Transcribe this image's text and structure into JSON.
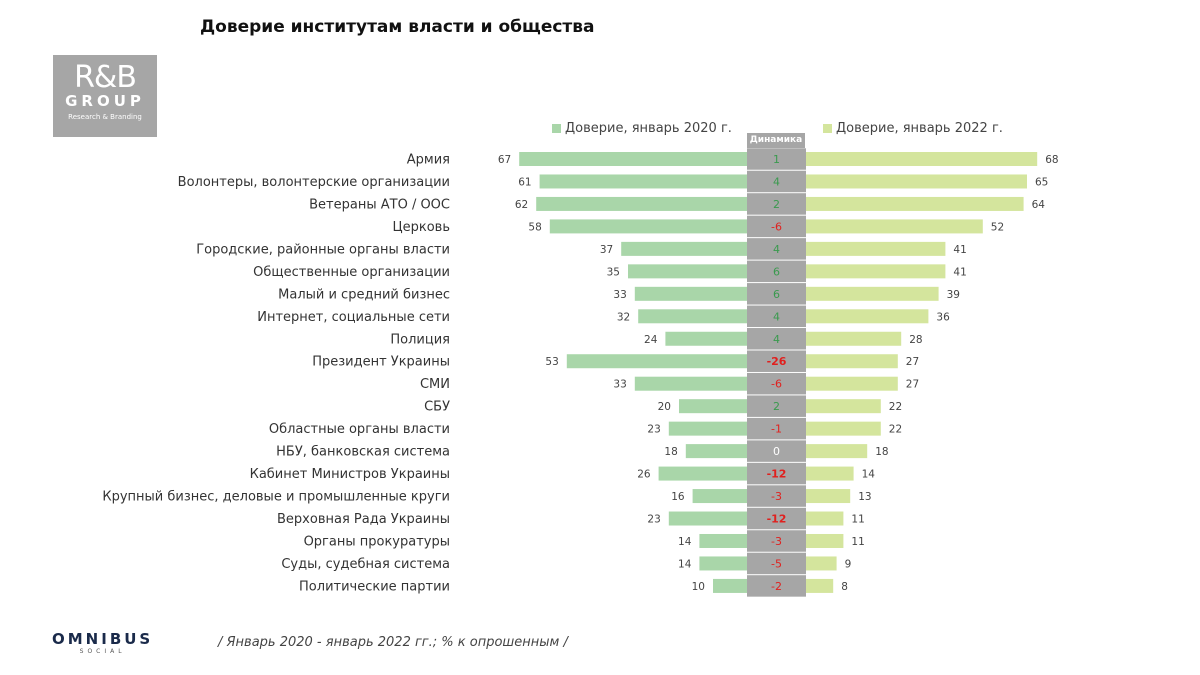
{
  "title": "Доверие институтам власти и общества",
  "logo": {
    "line1": "R&B",
    "line2": "GROUP",
    "line3": "Research & Branding"
  },
  "footer": {
    "logo": "OMNIBUS",
    "logo_sub": "SOCIAL",
    "note": "/ Январь 2020 - январь 2022 гг.; % к опрошенным /"
  },
  "chart_data": {
    "type": "bar",
    "title": "Доверие институтам власти и общества",
    "orientation": "horizontal-butterfly",
    "categories": [
      "Армия",
      "Волонтеры, волонтерские организации",
      "Ветераны АТО / ООС",
      "Церковь",
      "Городские, районные органы власти",
      "Общественные организации",
      "Малый и средний бизнес",
      "Интернет, социальные сети",
      "Полиция",
      "Президент Украины",
      "СМИ",
      "СБУ",
      "Областные органы власти",
      "НБУ, банковская система",
      "Кабинет Министров Украины",
      "Крупный бизнес, деловые и промышленные круги",
      "Верховная Рада Украины",
      "Органы прокуратуры",
      "Суды, судебная система",
      "Политические партии"
    ],
    "series": [
      {
        "name": "Доверие, январь 2020 г.",
        "color": "#a9d6a9",
        "values": [
          67,
          61,
          62,
          58,
          37,
          35,
          33,
          32,
          24,
          53,
          33,
          20,
          23,
          18,
          26,
          16,
          23,
          14,
          14,
          10
        ]
      },
      {
        "name": "Доверие, январь 2022 г.",
        "color": "#d4e59d",
        "values": [
          68,
          65,
          64,
          52,
          41,
          41,
          39,
          36,
          28,
          27,
          27,
          22,
          22,
          18,
          14,
          13,
          11,
          11,
          9,
          8
        ]
      }
    ],
    "dynamics": {
      "label": "Динамика",
      "values": [
        1,
        4,
        2,
        -6,
        4,
        6,
        6,
        4,
        4,
        -26,
        -6,
        2,
        -1,
        0,
        -12,
        -3,
        -12,
        -3,
        -5,
        -2
      ]
    },
    "colors": {
      "positive": "#3a9a4e",
      "negative": "#e0201e",
      "zero": "#ffffff",
      "center": "#a6a6a6"
    },
    "legend_position": "top",
    "grid": false
  }
}
